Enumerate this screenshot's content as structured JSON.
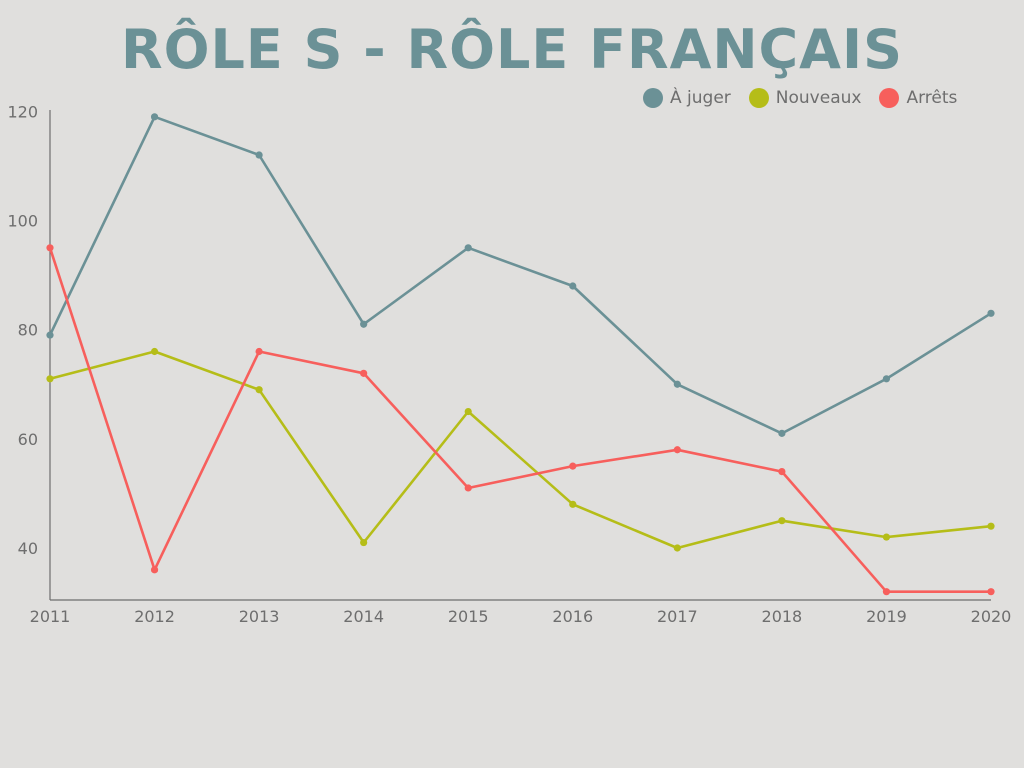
{
  "title": "RÔLE S - RÔLE FRANÇAIS",
  "chart_data": {
    "type": "line",
    "title": "RÔLE S - RÔLE FRANÇAIS",
    "categories": [
      "2011",
      "2012",
      "2013",
      "2014",
      "2015",
      "2016",
      "2017",
      "2018",
      "2019",
      "2020"
    ],
    "y_ticks": [
      "120",
      "100",
      "80",
      "60",
      "40"
    ],
    "ylim": [
      30,
      121
    ],
    "legend_position": "top-right",
    "grid": false,
    "series": [
      {
        "name": "À juger",
        "color": "#6b9196",
        "values": [
          79,
          119,
          112,
          81,
          95,
          88,
          70,
          61,
          71,
          83
        ]
      },
      {
        "name": "Nouveaux",
        "color": "#b5bd18",
        "values": [
          71,
          76,
          69,
          41,
          65,
          48,
          40,
          45,
          42,
          44
        ]
      },
      {
        "name": "Arrêts",
        "color": "#f75f5c",
        "values": [
          95,
          36,
          76,
          72,
          51,
          55,
          58,
          54,
          32,
          32
        ]
      }
    ]
  }
}
